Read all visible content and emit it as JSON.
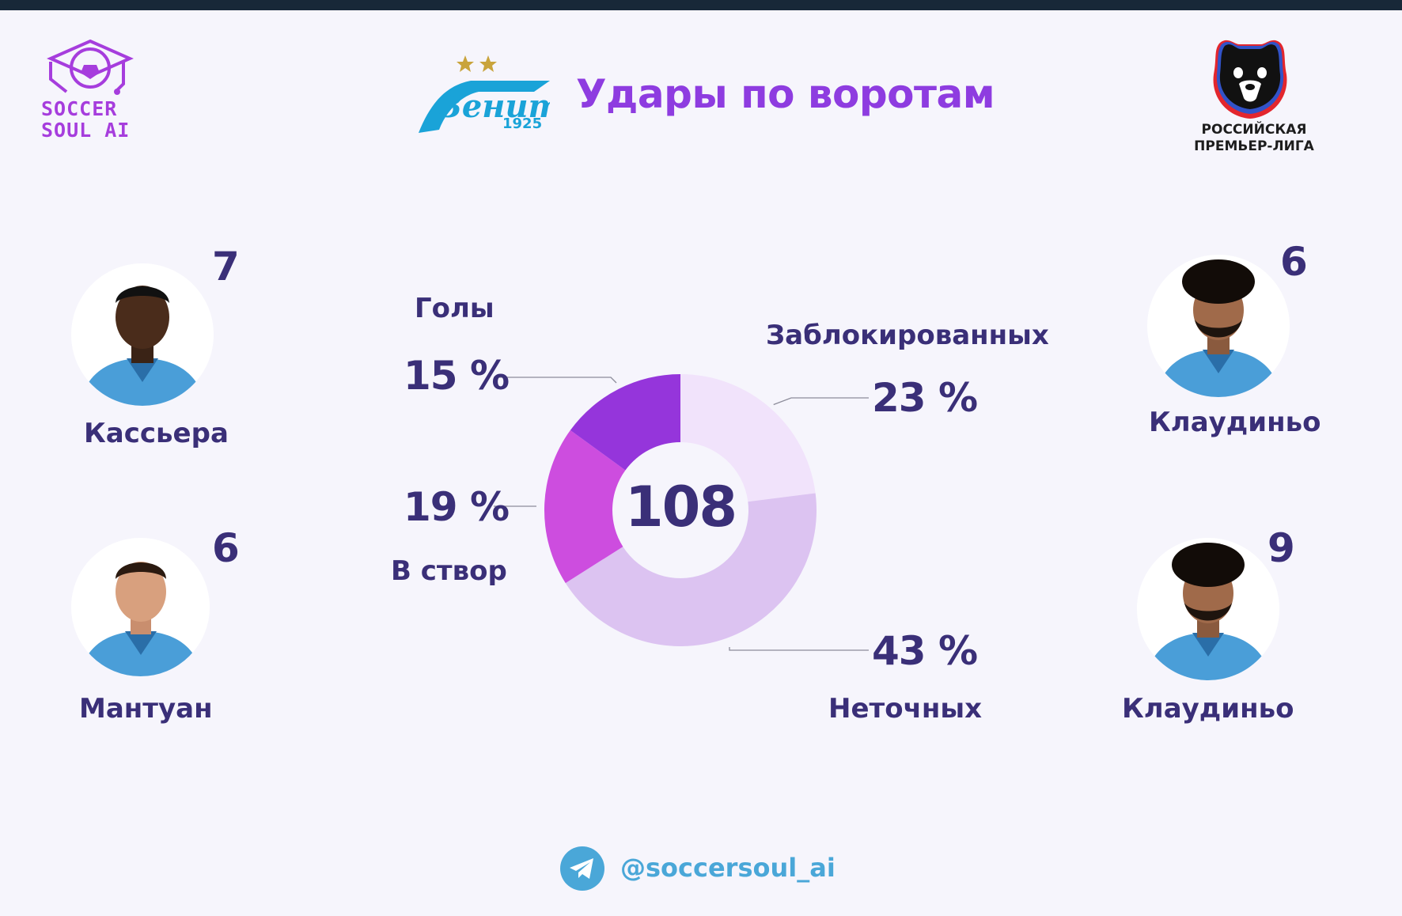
{
  "header": {
    "title": "Удары по воротам",
    "brand_logo_line1": "SOCCER",
    "brand_logo_line2": "SOUL AI",
    "club_logo_text": "Зенит",
    "club_logo_year": "1925",
    "league_line1": "РОССИЙСКАЯ",
    "league_line2": "ПРЕМЬЕР-ЛИГА"
  },
  "players": [
    {
      "name": "Кассьера",
      "value": "7"
    },
    {
      "name": "Мантуан",
      "value": "6"
    },
    {
      "name": "Клаудиньо",
      "value": "6"
    },
    {
      "name": "Клаудиньо",
      "value": "9"
    }
  ],
  "chart_data": {
    "type": "pie",
    "total": "108",
    "slices": [
      {
        "category": "Заблокированных",
        "percent": 23,
        "label": "23 %",
        "color": "#f1e3fb"
      },
      {
        "category": "Неточных",
        "percent": 43,
        "label": "43 %",
        "color": "#dcc3f1"
      },
      {
        "category": "В створ",
        "percent": 19,
        "label": "19 %",
        "color": "#cd4ddf"
      },
      {
        "category": "Голы",
        "percent": 15,
        "label": "15 %",
        "color": "#9535db"
      }
    ]
  },
  "footer": {
    "handle": "@soccersoul_ai",
    "icon": "telegram-icon"
  },
  "colors": {
    "background": "#f6f5fc",
    "title": "#8e3ce0",
    "text": "#3a2f78",
    "handle": "#4aa7d8"
  }
}
